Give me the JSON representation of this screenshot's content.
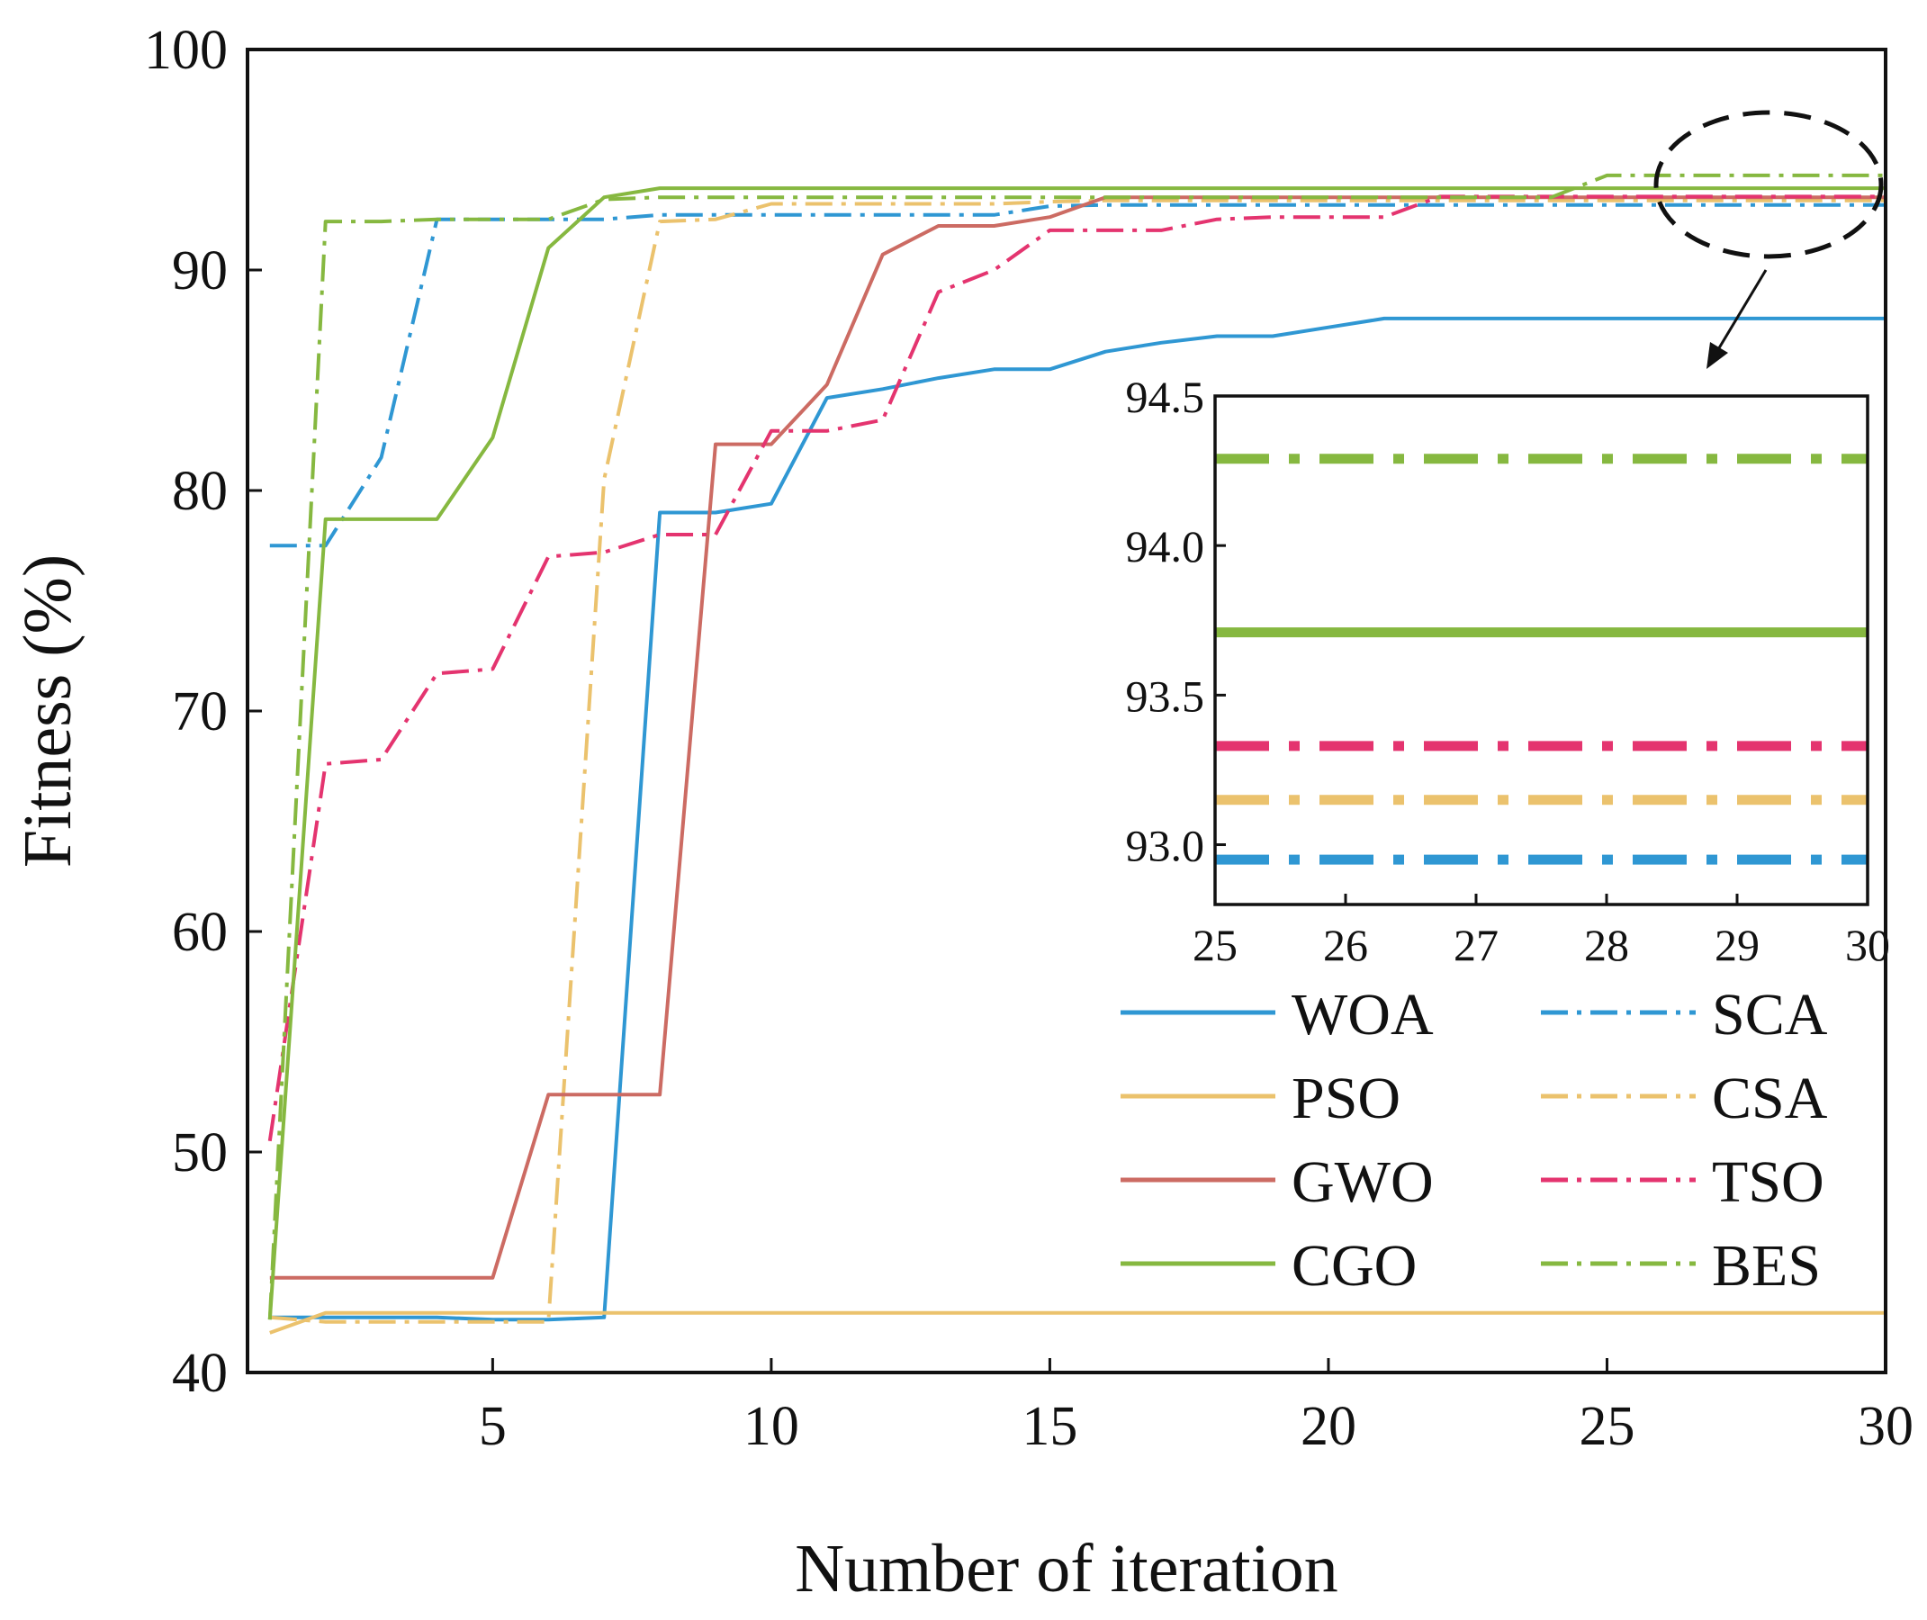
{
  "chart_data": {
    "type": "line",
    "xlabel": "Number of iteration",
    "ylabel": "Fitness (%)",
    "xlim": [
      0.6,
      30
    ],
    "ylim": [
      40,
      100
    ],
    "xticks": [
      5,
      10,
      15,
      20,
      25,
      30
    ],
    "yticks": [
      40,
      50,
      60,
      70,
      80,
      90,
      100
    ],
    "grid": false,
    "legend_placement": "bottom-right",
    "series": [
      {
        "name": "WOA",
        "color": "#2f97d3",
        "dash": "solid",
        "x": [
          1,
          2,
          3,
          4,
          5,
          6,
          7,
          8,
          9,
          10,
          11,
          12,
          13,
          14,
          15,
          16,
          17,
          18,
          19,
          20,
          21,
          22,
          23,
          24,
          25,
          26,
          27,
          28,
          29,
          30
        ],
        "y": [
          42.5,
          42.5,
          42.5,
          42.5,
          42.4,
          42.4,
          42.5,
          79.0,
          79.0,
          79.4,
          84.2,
          84.6,
          85.1,
          85.5,
          85.5,
          86.3,
          86.7,
          87.0,
          87.0,
          87.4,
          87.8,
          87.8,
          87.8,
          87.8,
          87.8,
          87.8,
          87.8,
          87.8,
          87.8,
          87.8
        ]
      },
      {
        "name": "SCA",
        "color": "#2f97d3",
        "dash": "dashdot",
        "x": [
          1,
          2,
          3,
          4,
          5,
          6,
          7,
          8,
          9,
          10,
          11,
          12,
          13,
          14,
          15,
          16,
          17,
          18,
          19,
          20,
          21,
          22,
          23,
          24,
          25,
          26,
          27,
          28,
          29,
          30
        ],
        "y": [
          77.5,
          77.5,
          81.5,
          92.3,
          92.3,
          92.3,
          92.3,
          92.5,
          92.5,
          92.5,
          92.5,
          92.5,
          92.5,
          92.5,
          92.9,
          92.95,
          92.95,
          92.95,
          92.95,
          92.95,
          92.95,
          92.95,
          92.95,
          92.95,
          92.95,
          92.95,
          92.95,
          92.95,
          92.95,
          92.95
        ]
      },
      {
        "name": "PSO",
        "color": "#ebc26d",
        "dash": "solid",
        "x": [
          1,
          2,
          3,
          4,
          5,
          6,
          7,
          8,
          9,
          10,
          11,
          12,
          13,
          14,
          15,
          16,
          17,
          18,
          19,
          20,
          21,
          22,
          23,
          24,
          25,
          26,
          27,
          28,
          29,
          30
        ],
        "y": [
          41.8,
          42.7,
          42.7,
          42.7,
          42.7,
          42.7,
          42.7,
          42.7,
          42.7,
          42.7,
          42.7,
          42.7,
          42.7,
          42.7,
          42.7,
          42.7,
          42.7,
          42.7,
          42.7,
          42.7,
          42.7,
          42.7,
          42.7,
          42.7,
          42.7,
          42.7,
          42.7,
          42.7,
          42.7,
          42.7
        ]
      },
      {
        "name": "CSA",
        "color": "#ebc26d",
        "dash": "dashdot",
        "x": [
          1,
          2,
          3,
          4,
          5,
          6,
          7,
          8,
          9,
          10,
          11,
          12,
          13,
          14,
          15,
          16,
          17,
          18,
          19,
          20,
          21,
          22,
          23,
          24,
          25,
          26,
          27,
          28,
          29,
          30
        ],
        "y": [
          42.5,
          42.3,
          42.3,
          42.3,
          42.3,
          42.3,
          80.5,
          92.2,
          92.3,
          93.0,
          93.0,
          93.0,
          93.0,
          93.0,
          93.1,
          93.15,
          93.15,
          93.15,
          93.15,
          93.15,
          93.15,
          93.15,
          93.15,
          93.15,
          93.15,
          93.15,
          93.15,
          93.15,
          93.15,
          93.15
        ]
      },
      {
        "name": "GWO",
        "color": "#cc6b63",
        "dash": "solid",
        "x": [
          1,
          2,
          3,
          4,
          5,
          6,
          7,
          8,
          9,
          10,
          11,
          12,
          13,
          14,
          15,
          16,
          17,
          18,
          19,
          20,
          21,
          22,
          23,
          24,
          25,
          26,
          27,
          28,
          29,
          30
        ],
        "y": [
          44.3,
          44.3,
          44.3,
          44.3,
          44.3,
          52.6,
          52.6,
          52.6,
          82.1,
          82.1,
          84.8,
          90.7,
          92.0,
          92.0,
          92.4,
          93.3,
          93.3,
          93.3,
          93.3,
          93.3,
          93.3,
          93.3,
          93.3,
          93.3,
          93.3,
          93.3,
          93.3,
          93.3,
          93.3,
          93.3
        ]
      },
      {
        "name": "TSO",
        "color": "#e4346f",
        "dash": "dashdot",
        "x": [
          1,
          2,
          3,
          4,
          5,
          6,
          7,
          8,
          9,
          10,
          11,
          12,
          13,
          14,
          15,
          16,
          17,
          18,
          19,
          20,
          21,
          22,
          23,
          24,
          25,
          26,
          27,
          28,
          29,
          30
        ],
        "y": [
          50.5,
          67.6,
          67.8,
          71.7,
          71.9,
          77.0,
          77.2,
          78.0,
          78.0,
          82.7,
          82.7,
          83.2,
          89.0,
          90.0,
          91.8,
          91.8,
          91.8,
          92.3,
          92.4,
          92.4,
          92.4,
          93.33,
          93.33,
          93.33,
          93.33,
          93.33,
          93.33,
          93.33,
          93.33,
          93.33
        ]
      },
      {
        "name": "CGO",
        "color": "#86b840",
        "dash": "solid",
        "x": [
          1,
          2,
          3,
          4,
          5,
          6,
          7,
          8,
          9,
          10,
          11,
          12,
          13,
          14,
          15,
          16,
          17,
          18,
          19,
          20,
          21,
          22,
          23,
          24,
          25,
          26,
          27,
          28,
          29,
          30
        ],
        "y": [
          42.4,
          78.7,
          78.7,
          78.7,
          82.4,
          91.0,
          93.3,
          93.71,
          93.71,
          93.71,
          93.71,
          93.71,
          93.71,
          93.71,
          93.71,
          93.71,
          93.71,
          93.71,
          93.71,
          93.71,
          93.71,
          93.71,
          93.71,
          93.71,
          93.71,
          93.71,
          93.71,
          93.71,
          93.71,
          93.71
        ]
      },
      {
        "name": "BES",
        "color": "#86b840",
        "dash": "dashdot",
        "x": [
          1,
          2,
          3,
          4,
          5,
          6,
          7,
          8,
          9,
          10,
          11,
          12,
          13,
          14,
          15,
          16,
          17,
          18,
          19,
          20,
          21,
          22,
          23,
          24,
          25,
          26,
          27,
          28,
          29,
          30
        ],
        "y": [
          42.4,
          92.2,
          92.2,
          92.3,
          92.3,
          92.3,
          93.2,
          93.3,
          93.3,
          93.3,
          93.3,
          93.3,
          93.3,
          93.3,
          93.3,
          93.3,
          93.3,
          93.3,
          93.3,
          93.3,
          93.3,
          93.3,
          93.3,
          93.3,
          94.29,
          94.29,
          94.29,
          94.29,
          94.29,
          94.29
        ]
      }
    ],
    "inset": {
      "xlim": [
        25,
        30
      ],
      "ylim": [
        92.8,
        94.5
      ],
      "xticks": [
        25,
        26,
        27,
        28,
        29,
        30
      ],
      "yticks": [
        93.0,
        93.5,
        94.0,
        94.5
      ],
      "ytick_labels": [
        "93.0",
        "93.5",
        "94.0",
        "94.5"
      ],
      "series_shown": [
        "SCA",
        "CSA",
        "TSO",
        "CGO",
        "BES"
      ]
    }
  }
}
